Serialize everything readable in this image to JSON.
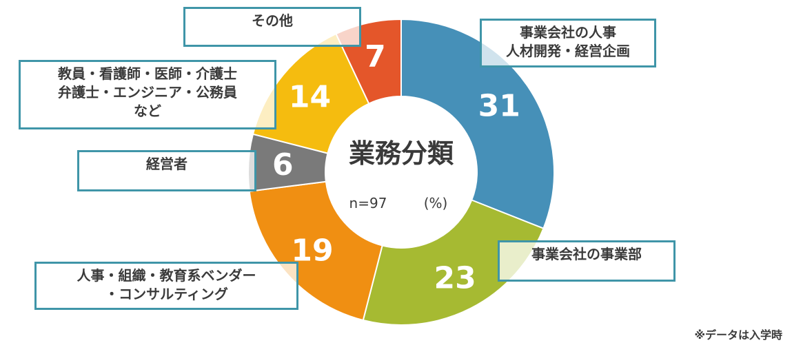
{
  "chart_data": {
    "type": "donut",
    "title": "業務分類",
    "sample_size": "n=97",
    "unit": "(%)",
    "note": "※データは入学時",
    "slices": [
      {
        "name": "事業会社の人事 人材開発・経営企画",
        "value": 31,
        "color": "#4690b8",
        "lines": [
          "事業会社の人事",
          "人材開発・経営企画"
        ]
      },
      {
        "name": "事業会社の事業部",
        "value": 23,
        "color": "#a6ba32",
        "lines": [
          "事業会社の事業部"
        ]
      },
      {
        "name": "人事・組織・教育系ベンダー・コンサルティング",
        "value": 19,
        "color": "#f08f12",
        "lines": [
          "人事・組織・教育系ベンダー",
          "・コンサルティング"
        ]
      },
      {
        "name": "経営者",
        "value": 6,
        "color": "#7a7a7a",
        "lines": [
          "経営者"
        ]
      },
      {
        "name": "教員・看護師・医師・介護士 弁護士・エンジニア・公務員 など",
        "value": 14,
        "color": "#f5bc0f",
        "lines": [
          "教員・看護師・医師・介護士",
          "弁護士・エンジニア・公務員",
          "など"
        ]
      },
      {
        "name": "その他",
        "value": 7,
        "color": "#e4562a",
        "lines": [
          "その他"
        ]
      }
    ]
  }
}
